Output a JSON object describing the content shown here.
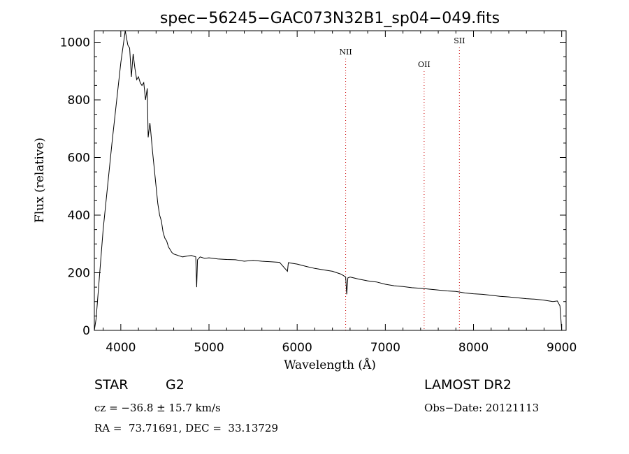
{
  "chart_data": {
    "type": "line",
    "title": "spec−56245−GAC073N32B1_sp04−049.fits",
    "xlabel": "Wavelength (Å)",
    "ylabel": "Flux (relative)",
    "xlim": [
      3700,
      9050
    ],
    "ylim": [
      0,
      1040
    ],
    "xticks": [
      4000,
      5000,
      6000,
      7000,
      8000,
      9000
    ],
    "yticks": [
      0,
      200,
      400,
      600,
      800,
      1000
    ],
    "grid": false,
    "line_color": "#000000",
    "marker_color": "#cc0000",
    "emission_lines": [
      {
        "label": "NII",
        "wavelength": 6550
      },
      {
        "label": "OII",
        "wavelength": 7440
      },
      {
        "label": "SII",
        "wavelength": 7840
      }
    ],
    "series": [
      {
        "x": [
          3700,
          3720,
          3800,
          3900,
          4000,
          4050,
          4080,
          4100,
          4120,
          4140,
          4160,
          4180,
          4200,
          4220,
          4240,
          4260,
          4280,
          4300,
          4310,
          4330,
          4340,
          4360,
          4380,
          4400,
          4420,
          4440,
          4460,
          4480,
          4500,
          4520,
          4540,
          4560,
          4580,
          4600,
          4650,
          4700,
          4750,
          4800,
          4850,
          4860,
          4870,
          4900,
          4950,
          5000,
          5100,
          5200,
          5300,
          5400,
          5500,
          5600,
          5700,
          5800,
          5890,
          5900,
          6000,
          6100,
          6200,
          6300,
          6400,
          6500,
          6550,
          6562,
          6575,
          6600,
          6700,
          6800,
          6900,
          7000,
          7100,
          7200,
          7300,
          7400,
          7500,
          7600,
          7700,
          7800,
          7900,
          8000,
          8100,
          8200,
          8300,
          8400,
          8500,
          8600,
          8700,
          8800,
          8900,
          8950,
          8980,
          9000,
          9050
        ],
        "values": [
          0,
          40,
          350,
          650,
          930,
          1060,
          990,
          980,
          880,
          960,
          910,
          870,
          880,
          860,
          850,
          860,
          800,
          840,
          670,
          720,
          690,
          620,
          560,
          500,
          440,
          400,
          380,
          340,
          320,
          310,
          290,
          280,
          270,
          265,
          260,
          255,
          258,
          260,
          255,
          150,
          245,
          255,
          250,
          252,
          248,
          246,
          245,
          240,
          243,
          240,
          238,
          236,
          205,
          235,
          230,
          222,
          215,
          210,
          205,
          195,
          185,
          125,
          182,
          185,
          178,
          172,
          168,
          160,
          155,
          152,
          148,
          146,
          143,
          140,
          137,
          135,
          130,
          127,
          125,
          122,
          118,
          116,
          113,
          110,
          108,
          105,
          100,
          102,
          85,
          0,
          0
        ]
      }
    ]
  },
  "footer": {
    "obj_class": "STAR",
    "subclass": "G2",
    "survey": "LAMOST DR2",
    "cz": "cz = −36.8 ± 15.7 km/s",
    "obs_date": "Obs−Date: 20121113",
    "coords": "RA =  73.71691, DEC =  33.13729"
  }
}
